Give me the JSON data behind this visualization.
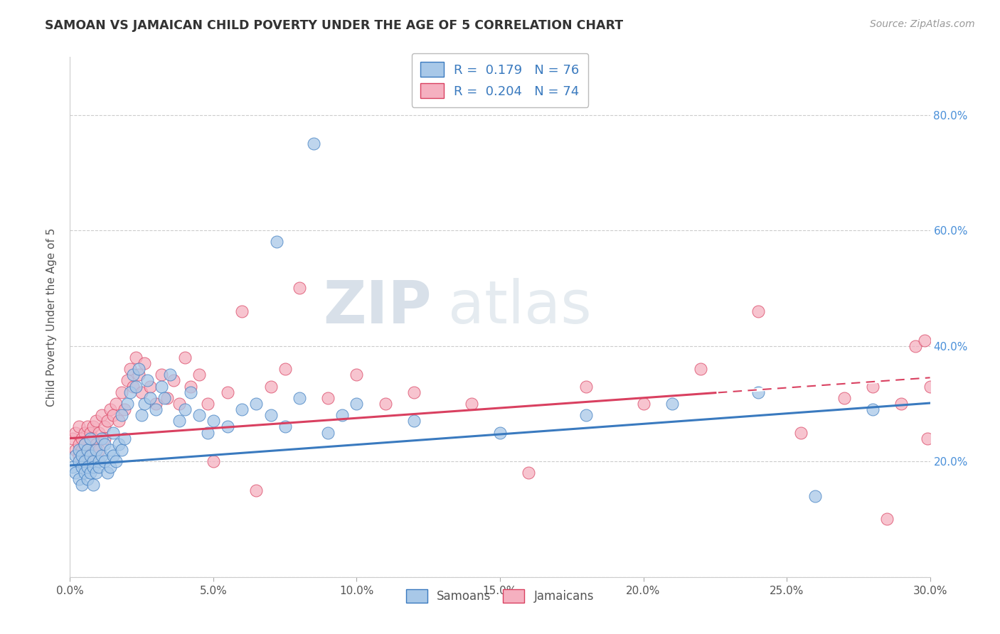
{
  "title": "SAMOAN VS JAMAICAN CHILD POVERTY UNDER THE AGE OF 5 CORRELATION CHART",
  "source": "Source: ZipAtlas.com",
  "ylabel_label": "Child Poverty Under the Age of 5",
  "legend_labels": [
    "Samoans",
    "Jamaicans"
  ],
  "legend_r": [
    "0.179",
    "0.204"
  ],
  "legend_n": [
    "76",
    "74"
  ],
  "samoan_color": "#a8c8e8",
  "jamaican_color": "#f5b0c0",
  "samoan_line_color": "#3a7abf",
  "jamaican_line_color": "#d94060",
  "background_color": "#ffffff",
  "watermark_zip": "ZIP",
  "watermark_atlas": "atlas",
  "xlim": [
    0.0,
    0.3
  ],
  "ylim": [
    0.0,
    0.9
  ],
  "xtick_vals": [
    0.0,
    0.05,
    0.1,
    0.15,
    0.2,
    0.25,
    0.3
  ],
  "xtick_labels": [
    "0.0%",
    "5.0%",
    "10.0%",
    "15.0%",
    "20.0%",
    "25.0%",
    "30.0%"
  ],
  "ytick_vals": [
    0.0,
    0.2,
    0.4,
    0.6,
    0.8
  ],
  "ytick_labels": [
    "",
    "20.0%",
    "40.0%",
    "60.0%",
    "80.0%"
  ],
  "samoan_x": [
    0.001,
    0.002,
    0.002,
    0.003,
    0.003,
    0.003,
    0.004,
    0.004,
    0.004,
    0.005,
    0.005,
    0.005,
    0.006,
    0.006,
    0.006,
    0.007,
    0.007,
    0.007,
    0.008,
    0.008,
    0.008,
    0.009,
    0.009,
    0.01,
    0.01,
    0.011,
    0.011,
    0.012,
    0.012,
    0.013,
    0.014,
    0.014,
    0.015,
    0.015,
    0.016,
    0.017,
    0.018,
    0.018,
    0.019,
    0.02,
    0.021,
    0.022,
    0.023,
    0.024,
    0.025,
    0.026,
    0.027,
    0.028,
    0.03,
    0.032,
    0.033,
    0.035,
    0.038,
    0.04,
    0.042,
    0.045,
    0.048,
    0.05,
    0.055,
    0.06,
    0.065,
    0.07,
    0.072,
    0.075,
    0.08,
    0.085,
    0.09,
    0.095,
    0.1,
    0.12,
    0.15,
    0.18,
    0.21,
    0.24,
    0.26,
    0.28
  ],
  "samoan_y": [
    0.19,
    0.21,
    0.18,
    0.2,
    0.22,
    0.17,
    0.21,
    0.19,
    0.16,
    0.2,
    0.23,
    0.18,
    0.22,
    0.19,
    0.17,
    0.21,
    0.24,
    0.18,
    0.2,
    0.19,
    0.16,
    0.18,
    0.22,
    0.2,
    0.19,
    0.24,
    0.21,
    0.23,
    0.2,
    0.18,
    0.22,
    0.19,
    0.25,
    0.21,
    0.2,
    0.23,
    0.28,
    0.22,
    0.24,
    0.3,
    0.32,
    0.35,
    0.33,
    0.36,
    0.28,
    0.3,
    0.34,
    0.31,
    0.29,
    0.33,
    0.31,
    0.35,
    0.27,
    0.29,
    0.32,
    0.28,
    0.25,
    0.27,
    0.26,
    0.29,
    0.3,
    0.28,
    0.58,
    0.26,
    0.31,
    0.75,
    0.25,
    0.28,
    0.3,
    0.27,
    0.25,
    0.28,
    0.3,
    0.32,
    0.14,
    0.29
  ],
  "jamaican_x": [
    0.001,
    0.002,
    0.002,
    0.003,
    0.003,
    0.003,
    0.004,
    0.004,
    0.005,
    0.005,
    0.005,
    0.006,
    0.006,
    0.007,
    0.007,
    0.008,
    0.008,
    0.009,
    0.009,
    0.01,
    0.01,
    0.011,
    0.012,
    0.012,
    0.013,
    0.014,
    0.015,
    0.016,
    0.017,
    0.018,
    0.019,
    0.02,
    0.021,
    0.022,
    0.023,
    0.024,
    0.025,
    0.026,
    0.028,
    0.03,
    0.032,
    0.034,
    0.036,
    0.038,
    0.04,
    0.042,
    0.045,
    0.048,
    0.05,
    0.055,
    0.06,
    0.065,
    0.07,
    0.075,
    0.08,
    0.09,
    0.1,
    0.11,
    0.12,
    0.14,
    0.16,
    0.18,
    0.2,
    0.22,
    0.24,
    0.255,
    0.27,
    0.28,
    0.285,
    0.29,
    0.295,
    0.298,
    0.299,
    0.3
  ],
  "jamaican_y": [
    0.24,
    0.22,
    0.25,
    0.23,
    0.26,
    0.21,
    0.24,
    0.22,
    0.25,
    0.23,
    0.2,
    0.26,
    0.22,
    0.25,
    0.21,
    0.24,
    0.26,
    0.23,
    0.27,
    0.25,
    0.22,
    0.28,
    0.26,
    0.24,
    0.27,
    0.29,
    0.28,
    0.3,
    0.27,
    0.32,
    0.29,
    0.34,
    0.36,
    0.33,
    0.38,
    0.35,
    0.32,
    0.37,
    0.33,
    0.3,
    0.35,
    0.31,
    0.34,
    0.3,
    0.38,
    0.33,
    0.35,
    0.3,
    0.2,
    0.32,
    0.46,
    0.15,
    0.33,
    0.36,
    0.5,
    0.31,
    0.35,
    0.3,
    0.32,
    0.3,
    0.18,
    0.33,
    0.3,
    0.36,
    0.46,
    0.25,
    0.31,
    0.33,
    0.1,
    0.3,
    0.4,
    0.41,
    0.24,
    0.33
  ]
}
